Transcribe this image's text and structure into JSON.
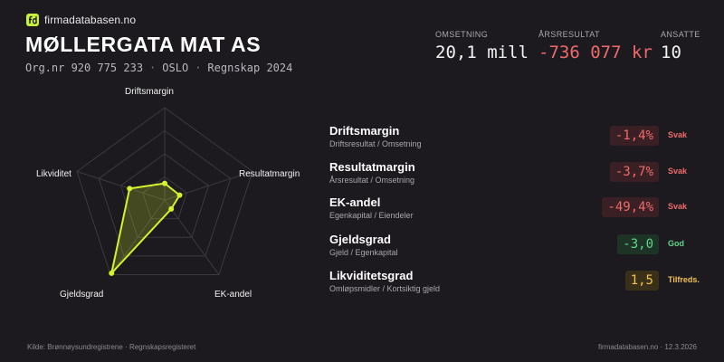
{
  "brand": {
    "name": "firmadatabasen.no",
    "logo_icon": "fd-logo-icon",
    "accent": "#c8f23a"
  },
  "company": {
    "name": "MØLLERGATA MAT AS",
    "orgnr": "Org.nr 920 775 233",
    "city": "OSLO",
    "period": "Regnskap 2024",
    "separator": "·"
  },
  "stats": [
    {
      "label": "OMSETNING",
      "value": "20,1 mill",
      "negative": false
    },
    {
      "label": "ÅRSRESULTAT",
      "value": "-736 077 kr",
      "negative": true
    },
    {
      "label": "ANSATTE",
      "value": "10",
      "negative": false
    }
  ],
  "radar": {
    "axes": [
      "Driftsmargin",
      "Resultatmargin",
      "EK-andel",
      "Gjeldsgrad",
      "Likviditet"
    ],
    "levels": 4,
    "values": [
      0.18,
      0.17,
      0.12,
      0.98,
      0.4
    ],
    "line_color": "#d4f32c",
    "fill_color": "rgba(212,243,44,0.22)",
    "grid_color": "#3b3940"
  },
  "metrics": [
    {
      "name": "Driftsmargin",
      "formula": "Driftsresultat / Omsetning",
      "value": "-1,4%",
      "status": "Svak",
      "value_color": "#ef6b6b",
      "badge_bg": "#3a2024",
      "status_color": "#ef6b6b"
    },
    {
      "name": "Resultatmargin",
      "formula": "Årsresultat / Omsetning",
      "value": "-3,7%",
      "status": "Svak",
      "value_color": "#ef6b6b",
      "badge_bg": "#3a2024",
      "status_color": "#ef6b6b"
    },
    {
      "name": "EK-andel",
      "formula": "Egenkapital / Eiendeler",
      "value": "-49,4%",
      "status": "Svak",
      "value_color": "#ef6b6b",
      "badge_bg": "#3a2024",
      "status_color": "#ef6b6b"
    },
    {
      "name": "Gjeldsgrad",
      "formula": "Gjeld / Egenkapital",
      "value": "-3,0",
      "status": "God",
      "value_color": "#5fd68a",
      "badge_bg": "#1c3326",
      "status_color": "#5fd68a"
    },
    {
      "name": "Likviditetsgrad",
      "formula": "Omløpsmidler / Kortsiktig gjeld",
      "value": "1,5",
      "status": "Tilfreds.",
      "value_color": "#f2c14e",
      "badge_bg": "#3a3019",
      "status_color": "#f2c14e"
    }
  ],
  "footer": {
    "source": "Kilde: Brønnøysundregistrene · Regnskapsregisteret",
    "site_date": "firmadatabasen.no · 12.3.2026"
  }
}
